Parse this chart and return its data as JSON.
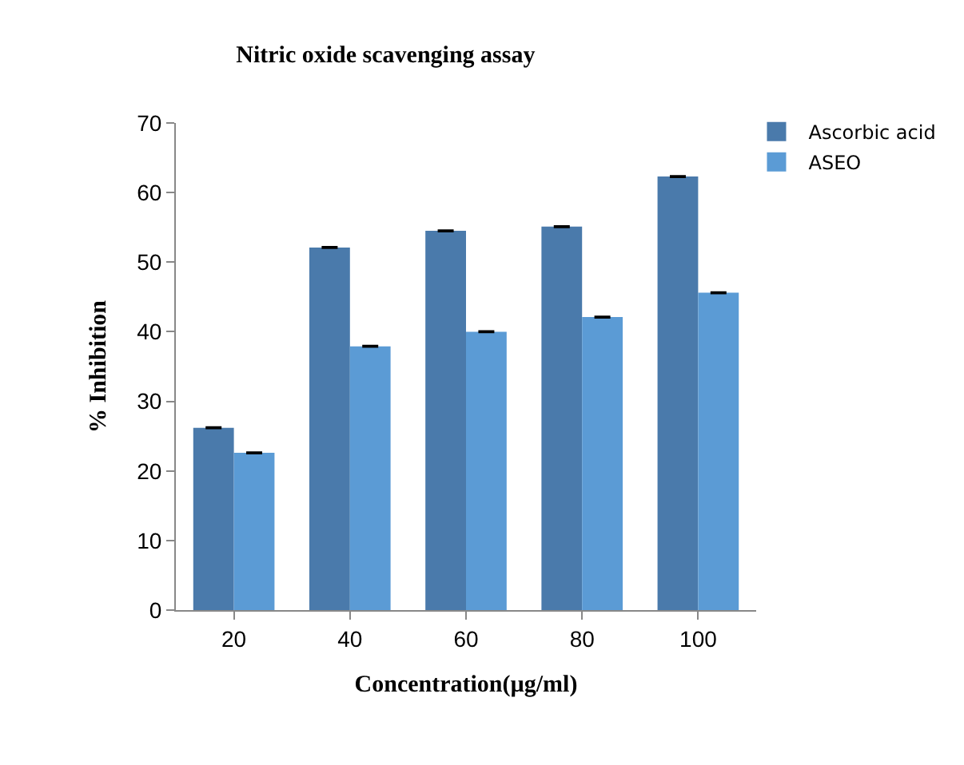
{
  "chart_data": {
    "type": "bar",
    "title": "Nitric oxide scavenging assay",
    "xlabel": "Concentration(µg/ml)",
    "ylabel": "% Inhibition",
    "categories": [
      "20",
      "40",
      "60",
      "80",
      "100"
    ],
    "series": [
      {
        "name": "Ascorbic acid",
        "color": "#4a7aab",
        "values": [
          26.2,
          52.1,
          54.5,
          55.1,
          62.3
        ],
        "errors": [
          0.1,
          0.1,
          0.1,
          0.1,
          0.1
        ]
      },
      {
        "name": "ASEO",
        "color": "#5b9bd5",
        "values": [
          22.6,
          37.9,
          40.0,
          42.1,
          45.6
        ],
        "errors": [
          0.1,
          0.1,
          0.1,
          0.1,
          0.1
        ]
      }
    ],
    "ylim": [
      0,
      70
    ],
    "yticks": [
      0,
      10,
      20,
      30,
      40,
      50,
      60,
      70
    ],
    "legend": "top right"
  }
}
